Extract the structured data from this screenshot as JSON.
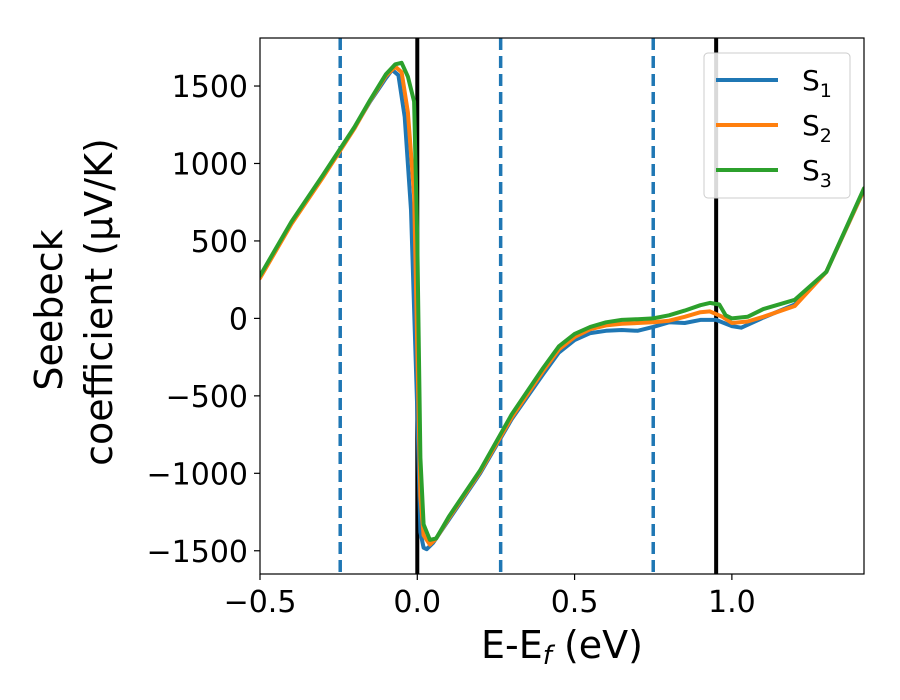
{
  "chart_data": {
    "type": "line",
    "title": "",
    "xlabel": "E-E",
    "xlabel_sub": "f",
    "xlabel_unit": " (eV)",
    "ylabel_line1": "Seebeck",
    "ylabel_line2": "coefficient  (μV/K)",
    "xlim": [
      -0.5,
      1.42
    ],
    "ylim": [
      -1650,
      1810
    ],
    "x_ticks": [
      -0.5,
      0.0,
      0.5,
      1.0
    ],
    "x_tick_labels": [
      "−0.5",
      "0.0",
      "0.5",
      "1.0"
    ],
    "y_ticks": [
      -1500,
      -1000,
      -500,
      0,
      500,
      1000,
      1500
    ],
    "y_tick_labels": [
      "−1500",
      "−1000",
      "−500",
      "0",
      "500",
      "1000",
      "1500"
    ],
    "legend_position": "top-right",
    "legend": [
      {
        "label": "S",
        "sub": "1",
        "color": "#1f77b4"
      },
      {
        "label": "S",
        "sub": "2",
        "color": "#ff7f0e"
      },
      {
        "label": "S",
        "sub": "3",
        "color": "#2ca02c"
      }
    ],
    "vlines": [
      {
        "x": -0.245,
        "style": "dashed",
        "color": "#1f77b4"
      },
      {
        "x": 0.0,
        "style": "solid",
        "color": "#000000"
      },
      {
        "x": 0.265,
        "style": "dashed",
        "color": "#1f77b4"
      },
      {
        "x": 0.75,
        "style": "dashed",
        "color": "#1f77b4"
      },
      {
        "x": 0.95,
        "style": "solid",
        "color": "#000000"
      }
    ],
    "series": [
      {
        "name": "S1",
        "color": "#1f77b4",
        "points": [
          [
            -0.5,
            270
          ],
          [
            -0.4,
            620
          ],
          [
            -0.3,
            920
          ],
          [
            -0.2,
            1230
          ],
          [
            -0.15,
            1400
          ],
          [
            -0.1,
            1550
          ],
          [
            -0.08,
            1605
          ],
          [
            -0.06,
            1570
          ],
          [
            -0.04,
            1300
          ],
          [
            -0.02,
            700
          ],
          [
            0.0,
            -600
          ],
          [
            0.01,
            -1380
          ],
          [
            0.02,
            -1480
          ],
          [
            0.03,
            -1490
          ],
          [
            0.05,
            -1450
          ],
          [
            0.1,
            -1300
          ],
          [
            0.2,
            -1000
          ],
          [
            0.3,
            -650
          ],
          [
            0.4,
            -360
          ],
          [
            0.45,
            -220
          ],
          [
            0.5,
            -140
          ],
          [
            0.55,
            -95
          ],
          [
            0.6,
            -80
          ],
          [
            0.65,
            -75
          ],
          [
            0.7,
            -80
          ],
          [
            0.75,
            -55
          ],
          [
            0.8,
            -25
          ],
          [
            0.85,
            -30
          ],
          [
            0.9,
            -10
          ],
          [
            0.95,
            -10
          ],
          [
            1.0,
            -50
          ],
          [
            1.03,
            -60
          ],
          [
            1.1,
            5
          ],
          [
            1.2,
            90
          ],
          [
            1.3,
            300
          ],
          [
            1.42,
            830
          ]
        ]
      },
      {
        "name": "S2",
        "color": "#ff7f0e",
        "points": [
          [
            -0.5,
            260
          ],
          [
            -0.4,
            610
          ],
          [
            -0.3,
            910
          ],
          [
            -0.2,
            1225
          ],
          [
            -0.15,
            1405
          ],
          [
            -0.1,
            1565
          ],
          [
            -0.07,
            1625
          ],
          [
            -0.05,
            1590
          ],
          [
            -0.03,
            1330
          ],
          [
            -0.01,
            800
          ],
          [
            0.0,
            -200
          ],
          [
            0.01,
            -1150
          ],
          [
            0.02,
            -1400
          ],
          [
            0.04,
            -1460
          ],
          [
            0.06,
            -1420
          ],
          [
            0.1,
            -1290
          ],
          [
            0.2,
            -990
          ],
          [
            0.3,
            -640
          ],
          [
            0.4,
            -340
          ],
          [
            0.45,
            -200
          ],
          [
            0.5,
            -120
          ],
          [
            0.55,
            -70
          ],
          [
            0.6,
            -45
          ],
          [
            0.65,
            -35
          ],
          [
            0.7,
            -30
          ],
          [
            0.75,
            -25
          ],
          [
            0.8,
            -15
          ],
          [
            0.85,
            10
          ],
          [
            0.9,
            40
          ],
          [
            0.93,
            45
          ],
          [
            0.97,
            10
          ],
          [
            1.0,
            -30
          ],
          [
            1.05,
            -20
          ],
          [
            1.1,
            10
          ],
          [
            1.2,
            80
          ],
          [
            1.3,
            300
          ],
          [
            1.42,
            830
          ]
        ]
      },
      {
        "name": "S3",
        "color": "#2ca02c",
        "points": [
          [
            -0.5,
            275
          ],
          [
            -0.4,
            625
          ],
          [
            -0.3,
            925
          ],
          [
            -0.2,
            1235
          ],
          [
            -0.15,
            1410
          ],
          [
            -0.1,
            1575
          ],
          [
            -0.07,
            1640
          ],
          [
            -0.05,
            1650
          ],
          [
            -0.03,
            1560
          ],
          [
            -0.01,
            1400
          ],
          [
            0.0,
            500
          ],
          [
            0.01,
            -900
          ],
          [
            0.02,
            -1330
          ],
          [
            0.04,
            -1430
          ],
          [
            0.06,
            -1420
          ],
          [
            0.1,
            -1280
          ],
          [
            0.2,
            -980
          ],
          [
            0.3,
            -620
          ],
          [
            0.4,
            -320
          ],
          [
            0.45,
            -180
          ],
          [
            0.5,
            -100
          ],
          [
            0.55,
            -55
          ],
          [
            0.6,
            -25
          ],
          [
            0.65,
            -10
          ],
          [
            0.7,
            -5
          ],
          [
            0.75,
            0
          ],
          [
            0.8,
            20
          ],
          [
            0.85,
            50
          ],
          [
            0.9,
            85
          ],
          [
            0.93,
            100
          ],
          [
            0.96,
            90
          ],
          [
            0.98,
            20
          ],
          [
            1.0,
            0
          ],
          [
            1.05,
            10
          ],
          [
            1.1,
            60
          ],
          [
            1.2,
            120
          ],
          [
            1.3,
            300
          ],
          [
            1.42,
            840
          ]
        ]
      }
    ]
  }
}
